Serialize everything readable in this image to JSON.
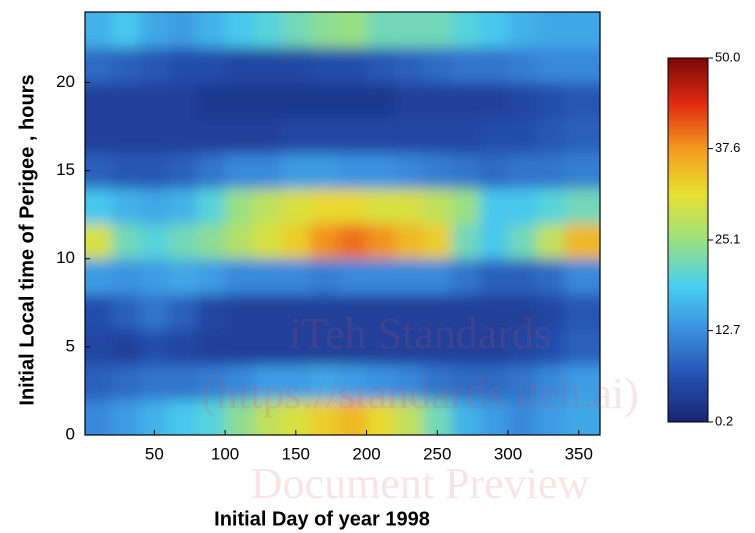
{
  "chart_data": {
    "type": "heatmap",
    "x_label": "Initial Day of year 1998",
    "y_label": "Initial Local time of Perigee , hours",
    "x": [
      10,
      30,
      50,
      70,
      90,
      110,
      130,
      150,
      170,
      190,
      210,
      230,
      250,
      270,
      290,
      310,
      330,
      350
    ],
    "y": [
      1,
      3,
      5,
      7,
      9,
      11,
      13,
      15,
      17,
      19,
      21,
      23
    ],
    "z": [
      [
        12,
        14,
        16,
        18,
        20,
        24,
        28,
        30,
        33,
        35,
        32,
        28,
        22,
        16,
        14,
        12,
        14,
        15
      ],
      [
        8,
        9,
        10,
        10,
        11,
        12,
        14,
        14,
        15,
        14,
        13,
        12,
        10,
        9,
        9,
        10,
        12,
        14
      ],
      [
        5,
        4,
        6,
        5,
        4,
        4,
        4,
        4,
        4,
        4,
        4,
        4,
        4,
        4,
        4,
        5,
        6,
        8
      ],
      [
        6,
        8,
        10,
        8,
        5,
        4,
        4,
        4,
        4,
        4,
        4,
        4,
        4,
        4,
        4,
        4,
        5,
        7
      ],
      [
        14,
        13,
        14,
        15,
        14,
        12,
        12,
        12,
        11,
        12,
        12,
        12,
        12,
        10,
        8,
        8,
        9,
        12
      ],
      [
        30,
        22,
        20,
        22,
        24,
        27,
        30,
        33,
        38,
        40,
        38,
        35,
        33,
        22,
        18,
        22,
        28,
        35
      ],
      [
        18,
        16,
        15,
        16,
        20,
        25,
        28,
        30,
        32,
        32,
        30,
        30,
        28,
        25,
        18,
        18,
        20,
        22
      ],
      [
        8,
        7,
        7,
        8,
        10,
        12,
        12,
        14,
        14,
        13,
        13,
        12,
        11,
        10,
        9,
        10,
        10,
        11
      ],
      [
        4,
        4,
        4,
        4,
        4,
        4,
        4,
        5,
        5,
        5,
        5,
        5,
        5,
        5,
        6,
        6,
        7,
        8
      ],
      [
        4,
        4,
        4,
        4,
        3,
        3,
        3,
        3,
        3,
        3,
        3,
        4,
        4,
        4,
        4,
        5,
        6,
        7
      ],
      [
        9,
        8,
        7,
        6,
        6,
        5,
        5,
        5,
        6,
        6,
        7,
        8,
        9,
        10,
        10,
        11,
        12,
        12
      ],
      [
        16,
        18,
        15,
        14,
        16,
        18,
        20,
        22,
        24,
        25,
        22,
        22,
        22,
        20,
        18,
        16,
        15,
        15
      ]
    ],
    "xlim": [
      1,
      365
    ],
    "xticks": [
      50,
      100,
      150,
      200,
      250,
      300,
      350
    ],
    "ylim": [
      0,
      24
    ],
    "yticks": [
      0,
      5,
      10,
      15,
      20
    ],
    "colorscale": [
      "#1b2474",
      "#2450b0",
      "#3a8ee0",
      "#48d0f0",
      "#9be080",
      "#e8e030",
      "#f59a20",
      "#e02a10",
      "#7a0808"
    ],
    "colorbar_lim": [
      0.2,
      50
    ],
    "colorbar_ticks": [
      0.2,
      12.7,
      25.1,
      37.6,
      {
        "value": 50,
        "label": "50.0"
      }
    ]
  },
  "watermark": {
    "lines": [
      "iTeh Standards",
      "(https://standards.iteh.ai)",
      "Document Preview"
    ]
  }
}
